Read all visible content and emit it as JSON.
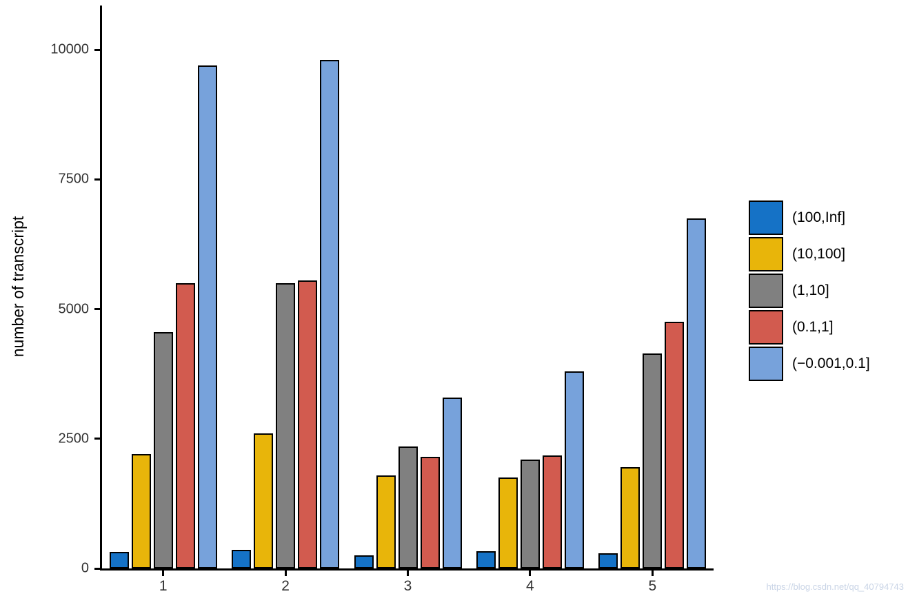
{
  "chart_data": {
    "type": "bar",
    "title": "",
    "xlabel": "",
    "ylabel": "number of transcript",
    "categories": [
      "1",
      "2",
      "3",
      "4",
      "5"
    ],
    "series": [
      {
        "name": "(100,Inf]",
        "color": "#1572C6",
        "values": [
          320,
          360,
          250,
          330,
          290
        ]
      },
      {
        "name": "(10,100]",
        "color": "#E8B50A",
        "values": [
          2200,
          2600,
          1800,
          1750,
          1950
        ]
      },
      {
        "name": "(1,10]",
        "color": "#808080",
        "values": [
          4550,
          5500,
          2350,
          2100,
          4150
        ]
      },
      {
        "name": "(0.1,1]",
        "color": "#D25B4F",
        "values": [
          5500,
          5550,
          2150,
          2180,
          4750
        ]
      },
      {
        "name": "(−0.001,0.1]",
        "color": "#77A2DB",
        "values": [
          9700,
          9800,
          3300,
          3800,
          6750
        ]
      }
    ],
    "ylim": [
      0,
      10850
    ],
    "yticks": [
      0,
      2500,
      5000,
      7500,
      10000
    ],
    "grid": false,
    "legend_position": "right",
    "bar_outline_color": "#000000"
  },
  "watermark": "https://blog.csdn.net/qq_40794743"
}
